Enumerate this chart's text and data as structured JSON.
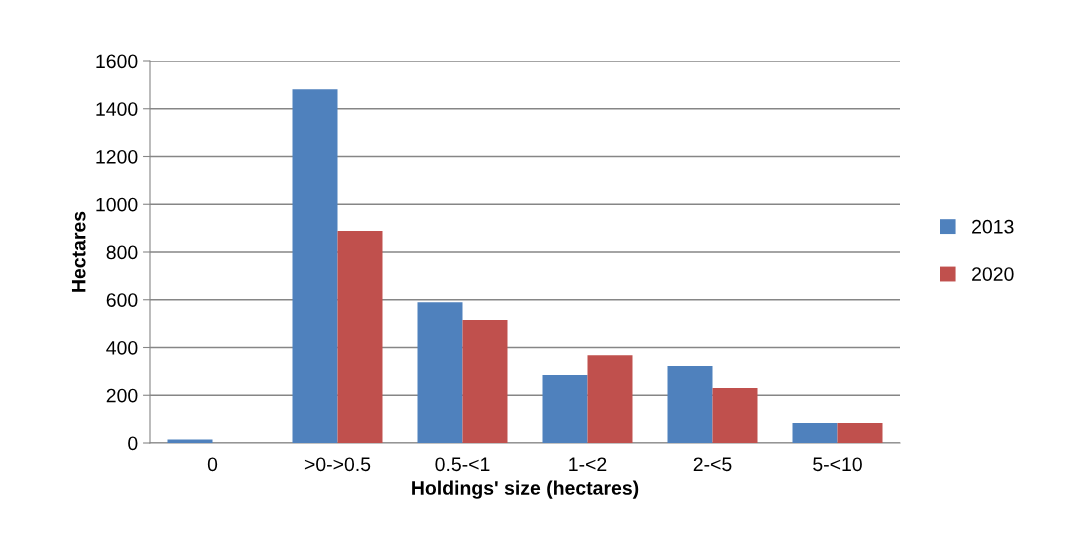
{
  "chart_data": {
    "type": "bar",
    "xlabel": "Holdings' size (hectares)",
    "ylabel": "Hectares",
    "categories": [
      "0",
      ">0->0.5",
      "0.5-<1",
      "1-<2",
      "2-<5",
      "5-<10"
    ],
    "series": [
      {
        "name": "2013",
        "color": "#4f81bd",
        "values": [
          15,
          1482,
          590,
          285,
          322,
          84
        ]
      },
      {
        "name": "2020",
        "color": "#c0504d",
        "values": [
          0,
          888,
          515,
          368,
          230,
          84
        ]
      }
    ],
    "ylim": [
      0,
      1600
    ],
    "yticks": [
      0,
      200,
      400,
      600,
      800,
      1000,
      1200,
      1400,
      1600
    ],
    "grid": "y",
    "legend": "right"
  }
}
